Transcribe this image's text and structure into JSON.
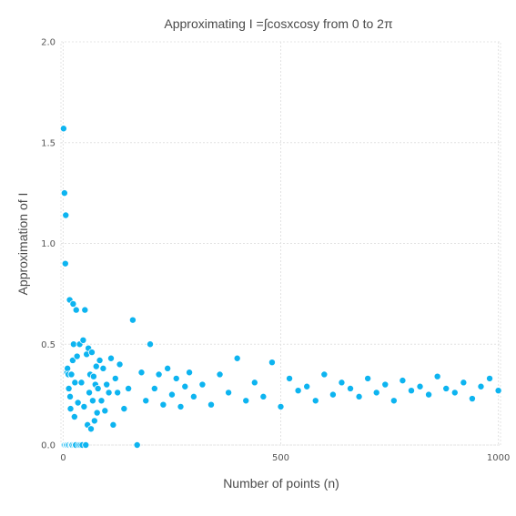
{
  "chart_data": {
    "type": "scatter",
    "title": "Approximating I =∫cosxcosy from 0 to 2π",
    "xlabel": "Number of points (n)",
    "ylabel": "Approximation of I",
    "xlim": [
      -5,
      1005
    ],
    "ylim": [
      0,
      2.0
    ],
    "xticks": [
      0,
      500,
      1000
    ],
    "xtick_labels": [
      "0",
      "500",
      "1000"
    ],
    "yticks": [
      0.0,
      0.5,
      1.0,
      1.5,
      2.0
    ],
    "ytick_labels": [
      "0.0",
      "0.5",
      "1.0",
      "1.5",
      "2.0"
    ],
    "grid": true,
    "legend": "none",
    "colors": {
      "marker": "#0db4f0",
      "marker_edge": "#ffffff"
    },
    "series": [
      {
        "x": [
          1,
          2,
          3,
          4,
          5,
          6,
          7,
          8,
          9,
          10,
          11,
          12,
          13,
          14,
          15,
          16,
          17,
          18,
          19,
          20,
          21,
          22,
          23,
          24,
          25,
          26,
          27,
          28,
          29,
          30,
          32,
          34,
          36,
          38,
          40,
          42,
          44,
          46,
          48,
          50,
          52,
          54,
          56,
          58,
          60,
          62,
          64,
          66,
          68,
          70,
          72,
          74,
          76,
          78,
          80,
          84,
          88,
          92,
          96,
          100,
          105,
          110,
          115,
          120,
          125,
          130,
          140,
          150,
          160,
          170,
          180,
          190,
          200,
          210,
          220,
          230,
          240,
          250,
          260,
          270,
          280,
          290,
          300,
          320,
          340,
          360,
          380,
          400,
          420,
          440,
          460,
          480,
          500,
          520,
          540,
          560,
          580,
          600,
          620,
          640,
          660,
          680,
          700,
          720,
          740,
          760,
          780,
          800,
          820,
          840,
          860,
          880,
          900,
          920,
          940,
          960,
          980,
          1000
        ],
        "y": [
          1.57,
          0.0,
          1.25,
          0.0,
          0.9,
          1.14,
          0.0,
          0.0,
          0.36,
          0.38,
          0.0,
          0.35,
          0.28,
          0.0,
          0.72,
          0.24,
          0.18,
          0.0,
          0.35,
          0.0,
          0.0,
          0.42,
          0.7,
          0.5,
          0.0,
          0.14,
          0.31,
          0.0,
          0.0,
          0.67,
          0.44,
          0.21,
          0.0,
          0.5,
          0.0,
          0.31,
          0.0,
          0.52,
          0.19,
          0.67,
          0.0,
          0.45,
          0.1,
          0.48,
          0.26,
          0.35,
          0.08,
          0.46,
          0.22,
          0.34,
          0.12,
          0.3,
          0.39,
          0.16,
          0.28,
          0.42,
          0.22,
          0.38,
          0.17,
          0.3,
          0.26,
          0.43,
          0.1,
          0.33,
          0.26,
          0.4,
          0.18,
          0.28,
          0.62,
          0.0,
          0.36,
          0.22,
          0.5,
          0.28,
          0.35,
          0.2,
          0.38,
          0.25,
          0.33,
          0.19,
          0.29,
          0.36,
          0.24,
          0.3,
          0.2,
          0.35,
          0.26,
          0.43,
          0.22,
          0.31,
          0.24,
          0.41,
          0.19,
          0.33,
          0.27,
          0.29,
          0.22,
          0.35,
          0.25,
          0.31,
          0.28,
          0.24,
          0.33,
          0.26,
          0.3,
          0.22,
          0.32,
          0.27,
          0.29,
          0.25,
          0.34,
          0.28,
          0.26,
          0.31,
          0.23,
          0.29,
          0.33,
          0.27
        ]
      }
    ]
  }
}
